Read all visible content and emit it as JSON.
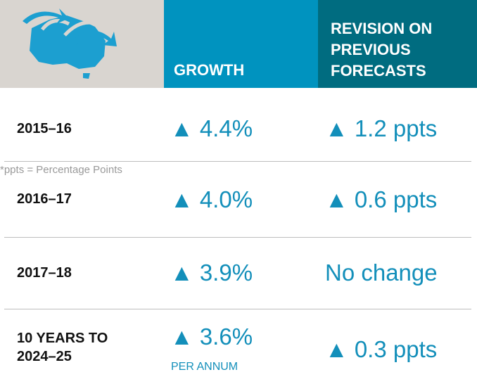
{
  "header": {
    "growth": "GROWTH",
    "revision": "REVISION ON PREVIOUS FORECASTS"
  },
  "rows": [
    {
      "period": "2015–16",
      "growth": "▲ 4.4%",
      "revision": "▲ 1.2 ppts"
    },
    {
      "period": "2016–17",
      "growth": "▲ 4.0%",
      "revision": "▲ 0.6 ppts"
    },
    {
      "period": "2017–18",
      "growth": "▲ 3.9%",
      "revision": "No change"
    },
    {
      "period": "10 YEARS TO 2024–25",
      "growth": "▲ 3.6%",
      "growth_note": "PER ANNUM",
      "revision": "▲ 0.3 ppts"
    }
  ],
  "footnote": "*ppts = Percentage Points"
}
